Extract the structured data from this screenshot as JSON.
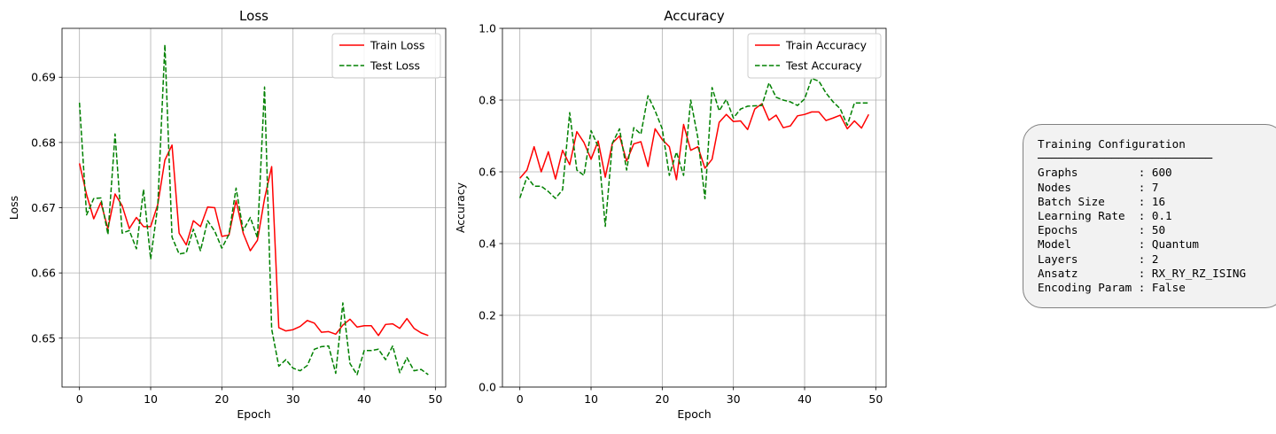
{
  "chart_data": [
    {
      "type": "line",
      "title": "Loss",
      "xlabel": "Epoch",
      "ylabel": "Loss",
      "xlim": [
        -2.45,
        51.45
      ],
      "ylim": [
        0.6425,
        0.6975
      ],
      "xticks": [
        0,
        10,
        20,
        30,
        40,
        50
      ],
      "yticks": [
        0.65,
        0.66,
        0.67,
        0.68,
        0.69
      ],
      "tick_labels_y": [
        "0.65",
        "0.66",
        "0.67",
        "0.68",
        "0.69"
      ],
      "grid": true,
      "legend": "upper right",
      "x": [
        0,
        1,
        2,
        3,
        4,
        5,
        6,
        7,
        8,
        9,
        10,
        11,
        12,
        13,
        14,
        15,
        16,
        17,
        18,
        19,
        20,
        21,
        22,
        23,
        24,
        25,
        26,
        27,
        28,
        29,
        30,
        31,
        32,
        33,
        34,
        35,
        36,
        37,
        38,
        39,
        40,
        41,
        42,
        43,
        44,
        45,
        46,
        47,
        48,
        49
      ],
      "series": [
        {
          "name": "Train Loss",
          "color": "#ff0000",
          "style": "solid",
          "values": [
            0.6768,
            0.672,
            0.6683,
            0.6708,
            0.6668,
            0.6721,
            0.6703,
            0.6668,
            0.6685,
            0.6671,
            0.6671,
            0.6705,
            0.6773,
            0.6796,
            0.6661,
            0.6643,
            0.668,
            0.6671,
            0.6701,
            0.67,
            0.6656,
            0.6658,
            0.6711,
            0.6661,
            0.6634,
            0.665,
            0.6714,
            0.6763,
            0.6516,
            0.6511,
            0.6513,
            0.6518,
            0.6527,
            0.6523,
            0.6509,
            0.651,
            0.6506,
            0.652,
            0.6529,
            0.6517,
            0.6519,
            0.6519,
            0.6504,
            0.6521,
            0.6522,
            0.6515,
            0.653,
            0.6515,
            0.6508,
            0.6504
          ]
        },
        {
          "name": "Test Loss",
          "color": "#008000",
          "style": "dashed",
          "values": [
            0.6861,
            0.6689,
            0.6714,
            0.6715,
            0.6659,
            0.6813,
            0.6661,
            0.6665,
            0.6637,
            0.6728,
            0.6621,
            0.6703,
            0.695,
            0.6655,
            0.6629,
            0.6631,
            0.6667,
            0.6634,
            0.668,
            0.6664,
            0.6638,
            0.6659,
            0.673,
            0.6665,
            0.6685,
            0.6654,
            0.6885,
            0.6514,
            0.6457,
            0.6467,
            0.6454,
            0.645,
            0.6458,
            0.6483,
            0.6487,
            0.6488,
            0.6446,
            0.6554,
            0.6461,
            0.6444,
            0.6481,
            0.6481,
            0.6483,
            0.6467,
            0.6488,
            0.6447,
            0.647,
            0.645,
            0.6452,
            0.6444
          ]
        }
      ]
    },
    {
      "type": "line",
      "title": "Accuracy",
      "xlabel": "Epoch",
      "ylabel": "Accuracy",
      "xlim": [
        -2.45,
        51.45
      ],
      "ylim": [
        0.0,
        1.0
      ],
      "xticks": [
        0,
        10,
        20,
        30,
        40,
        50
      ],
      "yticks": [
        0.0,
        0.2,
        0.4,
        0.6,
        0.8,
        1.0
      ],
      "tick_labels_y": [
        "0.0",
        "0.2",
        "0.4",
        "0.6",
        "0.8",
        "1.0"
      ],
      "grid": true,
      "legend": "upper right",
      "x": [
        0,
        1,
        2,
        3,
        4,
        5,
        6,
        7,
        8,
        9,
        10,
        11,
        12,
        13,
        14,
        15,
        16,
        17,
        18,
        19,
        20,
        21,
        22,
        23,
        24,
        25,
        26,
        27,
        28,
        29,
        30,
        31,
        32,
        33,
        34,
        35,
        36,
        37,
        38,
        39,
        40,
        41,
        42,
        43,
        44,
        45,
        46,
        47,
        48,
        49
      ],
      "series": [
        {
          "name": "Train Accuracy",
          "color": "#ff0000",
          "style": "solid",
          "values": [
            0.582,
            0.605,
            0.67,
            0.6,
            0.656,
            0.58,
            0.66,
            0.62,
            0.712,
            0.682,
            0.635,
            0.686,
            0.585,
            0.68,
            0.7,
            0.63,
            0.678,
            0.684,
            0.615,
            0.72,
            0.69,
            0.67,
            0.578,
            0.732,
            0.66,
            0.67,
            0.61,
            0.635,
            0.738,
            0.76,
            0.74,
            0.742,
            0.718,
            0.775,
            0.79,
            0.744,
            0.758,
            0.723,
            0.728,
            0.756,
            0.76,
            0.767,
            0.767,
            0.743,
            0.75,
            0.758,
            0.72,
            0.742,
            0.722,
            0.76
          ]
        },
        {
          "name": "Test Accuracy",
          "color": "#008000",
          "style": "dashed",
          "values": [
            0.527,
            0.586,
            0.56,
            0.56,
            0.545,
            0.526,
            0.55,
            0.765,
            0.605,
            0.59,
            0.715,
            0.67,
            0.448,
            0.68,
            0.72,
            0.605,
            0.723,
            0.705,
            0.812,
            0.77,
            0.72,
            0.59,
            0.655,
            0.59,
            0.8,
            0.695,
            0.525,
            0.835,
            0.77,
            0.802,
            0.75,
            0.775,
            0.783,
            0.784,
            0.785,
            0.848,
            0.808,
            0.8,
            0.795,
            0.785,
            0.803,
            0.86,
            0.853,
            0.82,
            0.795,
            0.776,
            0.73,
            0.792,
            0.792,
            0.792
          ]
        }
      ]
    }
  ],
  "config": {
    "text": "Training Configuration\n──────────────────────────\nGraphs         : 600\nNodes          : 7\nBatch Size     : 16\nLearning Rate  : 0.1\nEpochs         : 50\nModel          : Quantum\nLayers         : 2\nAnsatz         : RX_RY_RZ_ISING\nEncoding Param : False"
  }
}
